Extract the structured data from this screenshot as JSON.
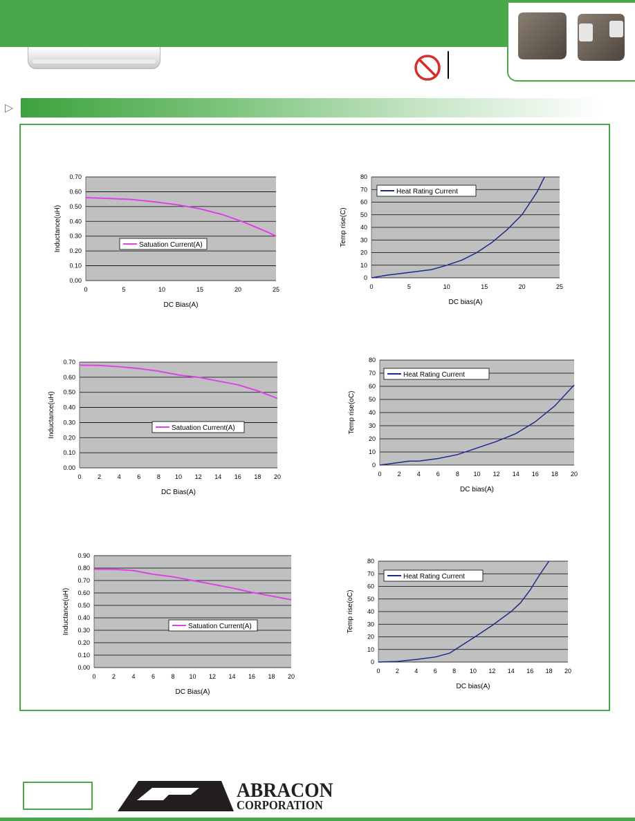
{
  "brand": {
    "name": "ABRACON",
    "subtitle": "CORPORATION",
    "accent_color": "#4aa84a"
  },
  "icons": [
    "no-entry-icon",
    "section-arrow-icon"
  ],
  "charts": [
    {
      "id": "c1",
      "box": "c1",
      "type": "line",
      "xlabel": "DC Bias(A)",
      "ylabel": "Inductance(uH)",
      "legend": "Satuation Current(A)",
      "series_color": "#e040e8",
      "xlim": [
        0,
        25
      ],
      "xticks": [
        0,
        5,
        10,
        15,
        20,
        25
      ],
      "ylim": [
        0,
        0.7
      ],
      "yticks": [
        "0.00",
        "0.10",
        "0.20",
        "0.30",
        "0.40",
        "0.50",
        "0.60",
        "0.70"
      ],
      "x": [
        0,
        3,
        6,
        9,
        12,
        15,
        18,
        21,
        24,
        25
      ],
      "y": [
        0.56,
        0.555,
        0.548,
        0.532,
        0.512,
        0.485,
        0.445,
        0.39,
        0.325,
        0.3
      ]
    },
    {
      "id": "c2",
      "box": "c2",
      "type": "line",
      "xlabel": "DC bias(A)",
      "ylabel": "Temp rise(C)",
      "legend": "Heat Rating Current",
      "series_color": "#1a2a8c",
      "xlim": [
        0,
        25
      ],
      "xticks": [
        0,
        5,
        10,
        15,
        20,
        25
      ],
      "ylim": [
        0,
        80
      ],
      "yticks": [
        "0",
        "10",
        "20",
        "30",
        "40",
        "50",
        "60",
        "70",
        "80"
      ],
      "x": [
        0,
        2,
        4,
        6,
        8,
        10,
        12,
        14,
        16,
        18,
        20,
        22,
        23
      ],
      "y": [
        0,
        2,
        3.5,
        5,
        6.5,
        10,
        14,
        20,
        28,
        38,
        50,
        68,
        80
      ]
    },
    {
      "id": "c3",
      "box": "c3",
      "type": "line",
      "xlabel": "DC Bias(A)",
      "ylabel": "Inductance(uH)",
      "legend": "Satuation Current(A)",
      "series_color": "#e040e8",
      "xlim": [
        0,
        20
      ],
      "xticks": [
        0,
        2,
        4,
        6,
        8,
        10,
        12,
        14,
        16,
        18,
        20
      ],
      "ylim": [
        0,
        0.7
      ],
      "yticks": [
        "0.00",
        "0.10",
        "0.20",
        "0.30",
        "0.40",
        "0.50",
        "0.60",
        "0.70"
      ],
      "x": [
        0,
        2,
        4,
        6,
        8,
        10,
        12,
        14,
        16,
        18,
        20
      ],
      "y": [
        0.68,
        0.678,
        0.67,
        0.658,
        0.64,
        0.615,
        0.6,
        0.575,
        0.55,
        0.51,
        0.46
      ]
    },
    {
      "id": "c4",
      "box": "c4",
      "type": "line",
      "xlabel": "DC bias(A)",
      "ylabel": "Temp rise(oC)",
      "legend": "Heat Rating Current",
      "series_color": "#1a2a8c",
      "xlim": [
        0,
        20
      ],
      "xticks": [
        0,
        2,
        4,
        6,
        8,
        10,
        12,
        14,
        16,
        18,
        20
      ],
      "ylim": [
        0,
        80
      ],
      "yticks": [
        "0",
        "10",
        "20",
        "30",
        "40",
        "50",
        "60",
        "70",
        "80"
      ],
      "x": [
        0,
        1,
        2,
        3,
        4,
        6,
        8,
        10,
        12,
        14,
        16,
        18,
        20
      ],
      "y": [
        0,
        1,
        2,
        3,
        3,
        5,
        8,
        13,
        18,
        24,
        33,
        45,
        61
      ]
    },
    {
      "id": "c5",
      "box": "c5",
      "type": "line",
      "xlabel": "DC Bias(A)",
      "ylabel": "Inductance(uH)",
      "legend": "Satuation Current(A)",
      "series_color": "#e040e8",
      "xlim": [
        0,
        20
      ],
      "xticks": [
        0,
        2,
        4,
        6,
        8,
        10,
        12,
        14,
        16,
        18,
        20
      ],
      "ylim": [
        0,
        0.9
      ],
      "yticks": [
        "0.00",
        "0.10",
        "0.20",
        "0.30",
        "0.40",
        "0.50",
        "0.60",
        "0.70",
        "0.80",
        "0.90"
      ],
      "x": [
        0,
        2,
        4,
        6,
        8,
        10,
        12,
        14,
        16,
        18,
        20
      ],
      "y": [
        0.79,
        0.79,
        0.78,
        0.75,
        0.73,
        0.7,
        0.67,
        0.64,
        0.605,
        0.575,
        0.545
      ]
    },
    {
      "id": "c6",
      "box": "c6",
      "type": "line",
      "xlabel": "DC bias(A)",
      "ylabel": "Temp rise(oC)",
      "legend": "Heat Rating Current",
      "series_color": "#1a2a8c",
      "xlim": [
        0,
        20
      ],
      "xticks": [
        0,
        2,
        4,
        6,
        8,
        10,
        12,
        14,
        16,
        18,
        20
      ],
      "ylim": [
        0,
        80
      ],
      "yticks": [
        "0",
        "10",
        "20",
        "30",
        "40",
        "50",
        "60",
        "70",
        "80"
      ],
      "x": [
        0,
        2,
        4,
        6,
        7.5,
        10,
        12,
        14,
        15,
        16,
        17,
        18
      ],
      "y": [
        0,
        0.5,
        2,
        4,
        7,
        19,
        29,
        40,
        47,
        57,
        69,
        80
      ]
    }
  ]
}
